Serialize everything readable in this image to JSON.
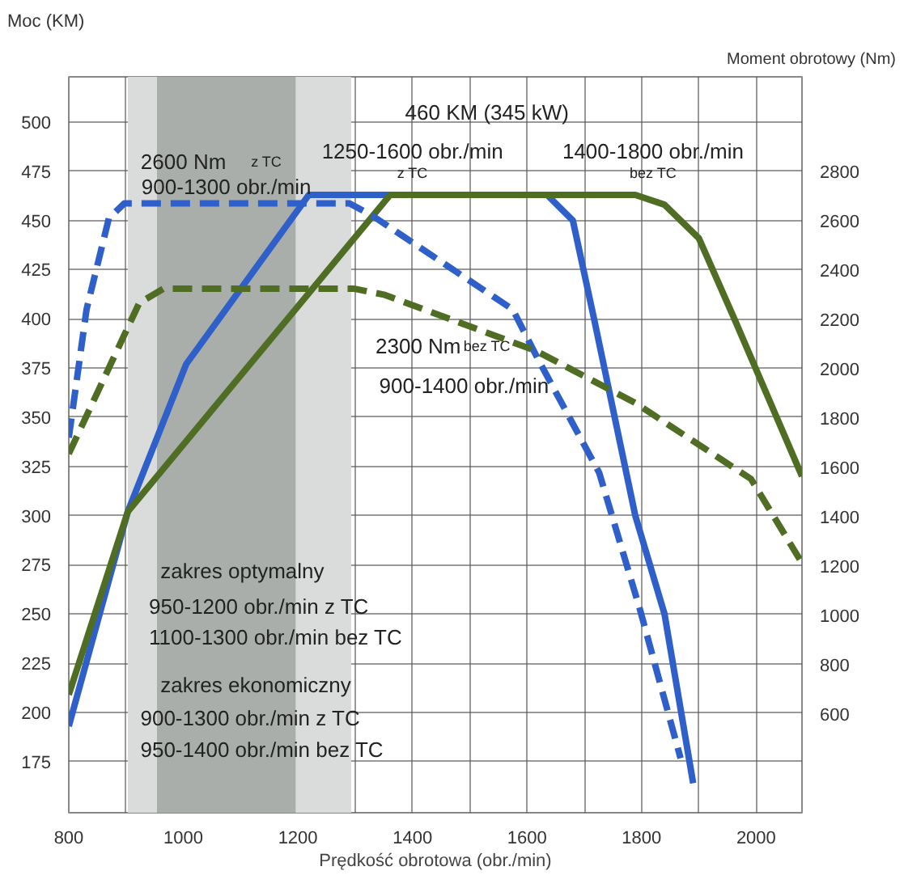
{
  "chart_data": {
    "type": "line",
    "xlabel": "Prędkość obrotowa (obr./min)",
    "ylabel": "Moc (KM)",
    "y2label": "Moment obrotowy (Nm)",
    "xlim": [
      800,
      2080
    ],
    "xticks": [
      800,
      {
        "value": 900,
        "label": null
      },
      1000,
      {
        "value": 1100,
        "label": null
      },
      1200,
      {
        "value": 1300,
        "label": null
      },
      1400,
      {
        "value": 1500,
        "label": null
      },
      1600,
      {
        "value": 1700,
        "label": null
      },
      1800,
      {
        "value": 1900,
        "label": null
      },
      2000
    ],
    "ylim": [
      149,
      523
    ],
    "yticks": [
      175,
      200,
      225,
      250,
      275,
      300,
      325,
      350,
      375,
      400,
      425,
      450,
      475,
      500
    ],
    "y2lim": [
      200,
      3183
    ],
    "y2ticks": [
      600,
      800,
      1000,
      1200,
      1400,
      1600,
      1800,
      2000,
      2200,
      2400,
      2600,
      2800
    ],
    "grid": true,
    "bands": [
      {
        "axis": "x",
        "from": 903,
        "to": 1293,
        "color": "#d9dcdb"
      },
      {
        "axis": "x",
        "from": 954,
        "to": 1196,
        "color": "#a9aeab"
      }
    ],
    "series": [
      {
        "color": "#2f5fc8",
        "line_style": "solid",
        "x": [
          800,
          903,
          1005,
          1219,
          1635,
          1680,
          1717,
          1789,
          1840,
          1890
        ],
        "values": [
          193,
          302,
          377,
          463,
          463,
          450,
          400,
          300,
          250,
          164
        ]
      },
      {
        "color": "#4f6e24",
        "line_style": "solid",
        "x": [
          800,
          903,
          1199,
          1361,
          1789,
          1840,
          1900,
          1962,
          2080
        ],
        "values": [
          209,
          302,
          406,
          463,
          463,
          458,
          441,
          400,
          320
        ]
      },
      {
        "color": "#2f5fc8",
        "line_style": "dashed",
        "axis": "y2",
        "x": [
          800,
          831,
          870,
          897,
          1290,
          1330,
          1575,
          1620,
          1726,
          1797,
          1868
        ],
        "values": [
          1720,
          2240,
          2610,
          2670,
          2670,
          2620,
          2240,
          2035,
          1578,
          1025,
          421
        ]
      },
      {
        "color": "#4f6e24",
        "line_style": "dashed",
        "axis": "y2",
        "x": [
          800,
          923,
          965,
          1299,
          1350,
          1615,
          1789,
          1991,
          2080
        ],
        "values": [
          1655,
          2266,
          2324,
          2324,
          2300,
          2073,
          1861,
          1553,
          1212
        ]
      }
    ],
    "annotations": [
      "460 KM (345 kW)",
      "1250-1600 obr./min",
      "z TC",
      "1400-1800 obr./min",
      "bez TC",
      "2600 Nm",
      "z TC",
      "900-1300 obr./min",
      "2300 Nm",
      "bez TC",
      "900-1400 obr./min",
      "zakres optymalny",
      "950-1200 obr./min z TC",
      "1100-1300 obr./min bez TC",
      "zakres ekonomiczny",
      "900-1300 obr./min z TC",
      "950-1400 obr./min bez TC"
    ]
  }
}
